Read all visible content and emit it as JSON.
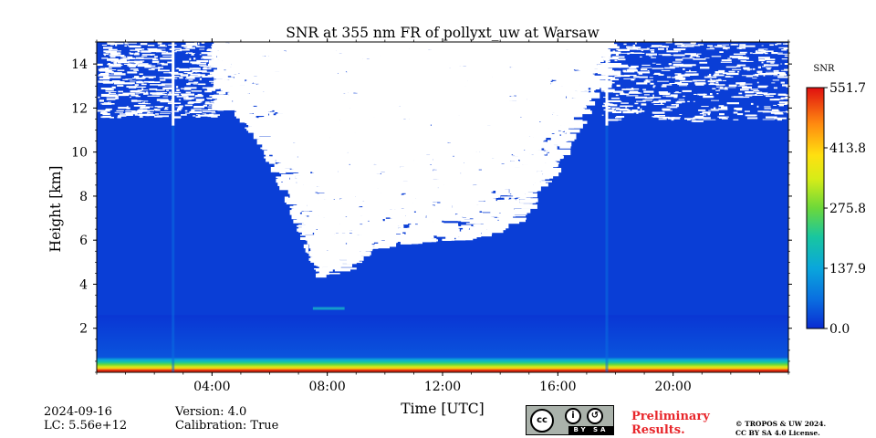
{
  "chart_data": {
    "type": "heatmap",
    "title": "SNR at 355 nm FR of pollyxt_uw at Warsaw",
    "xlabel": "Time [UTC]",
    "ylabel": "Height [km]",
    "xlim_hours": [
      0,
      24
    ],
    "ylim_km": [
      0,
      15
    ],
    "xticks": [
      {
        "value": 4,
        "label": "04:00"
      },
      {
        "value": 8,
        "label": "08:00"
      },
      {
        "value": 12,
        "label": "12:00"
      },
      {
        "value": 16,
        "label": "16:00"
      },
      {
        "value": 20,
        "label": "20:00"
      }
    ],
    "yticks": [
      {
        "value": 2,
        "label": "2"
      },
      {
        "value": 4,
        "label": "4"
      },
      {
        "value": 6,
        "label": "6"
      },
      {
        "value": 8,
        "label": "8"
      },
      {
        "value": 10,
        "label": "10"
      },
      {
        "value": 12,
        "label": "12"
      },
      {
        "value": 14,
        "label": "14"
      }
    ],
    "colorbar": {
      "label": "SNR",
      "min": 0.0,
      "max": 551.7,
      "ticks": [
        {
          "value": 0.0,
          "label": "0.0"
        },
        {
          "value": 137.9,
          "label": "137.9"
        },
        {
          "value": 275.8,
          "label": "275.8"
        },
        {
          "value": 413.8,
          "label": "413.8"
        },
        {
          "value": 551.7,
          "label": "551.7"
        }
      ],
      "colors": [
        "#0a2bd2",
        "#0a8adf",
        "#18c6b4",
        "#7fdc35",
        "#ffee10",
        "#ff9a10",
        "#e01010"
      ]
    },
    "background_level_snr": 20,
    "near_surface_max_height_km": 0.7,
    "instrument_gaps_hours": [
      2.65,
      17.7
    ],
    "noise_region_note": "low-SNR (blank) pixels reach down to about 4.3 km near 07:30 UTC",
    "aerosol_layer": {
      "time_hours": [
        7.5,
        8.6
      ],
      "height_km": 2.9
    }
  },
  "footer": {
    "date": "2024-09-16",
    "lc": "LC: 5.56e+12",
    "version": "Version: 4.0",
    "calibration": "Calibration: True",
    "preliminary_line1": "Preliminary",
    "preliminary_line2": "Results.",
    "copyright_line1": "© TROPOS & UW 2024.",
    "copyright_line2": "CC BY SA 4.0 License.",
    "license_badge_text": "BY  SA"
  }
}
